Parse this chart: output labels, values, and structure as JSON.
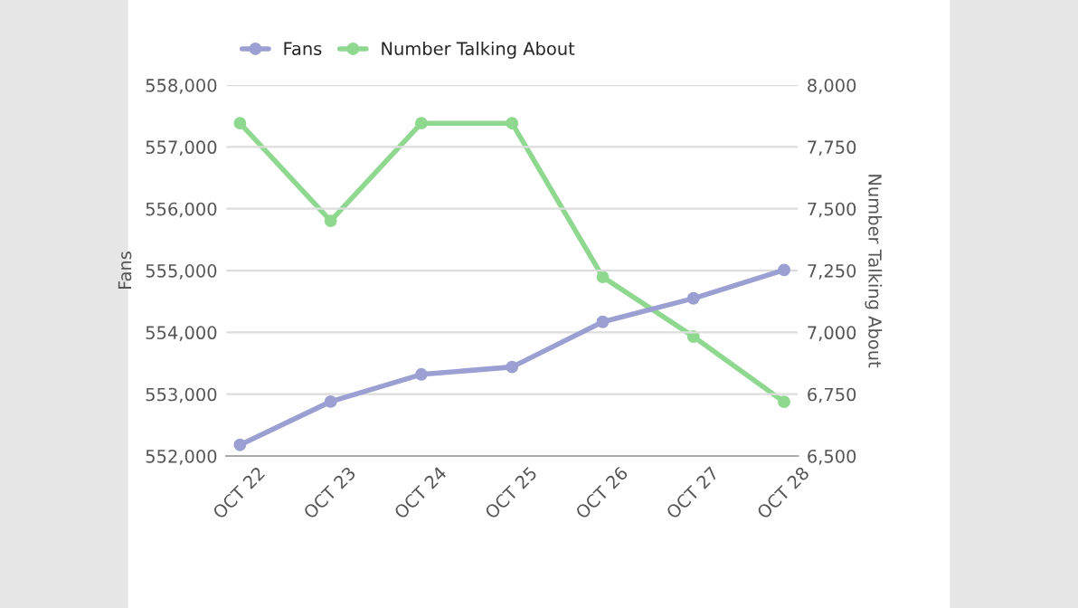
{
  "chart_data": {
    "type": "line",
    "xlabel": null,
    "ylabel": "Fans",
    "y2label": "Number Talking About",
    "categories": [
      "OCT 22",
      "OCT 23",
      "OCT 24",
      "OCT 25",
      "OCT 26",
      "OCT 27",
      "OCT 28"
    ],
    "series": [
      {
        "name": "Fans",
        "color": "#9b9fd2",
        "values": [
          552180,
          552880,
          553320,
          553440,
          554170,
          554550,
          555010
        ]
      },
      {
        "name": "Number Talking About",
        "color": "#8fd88f",
        "axis": "y2",
        "values": [
          7846,
          7451,
          7846,
          7846,
          7224,
          6983,
          6719
        ]
      }
    ],
    "ylim": [
      552000,
      558000
    ],
    "yticks": [
      {
        "value": 552000,
        "label": "552,000"
      },
      {
        "value": 553000,
        "label": "553,000"
      },
      {
        "value": 554000,
        "label": "554,000"
      },
      {
        "value": 555000,
        "label": "555,000"
      },
      {
        "value": 556000,
        "label": "556,000"
      },
      {
        "value": 557000,
        "label": "557,000"
      },
      {
        "value": 558000,
        "label": "558,000"
      }
    ],
    "y2lim": [
      6500,
      8000
    ],
    "y2ticks": [
      {
        "value": 6500,
        "label": "6,500"
      },
      {
        "value": 6750,
        "label": "6,750"
      },
      {
        "value": 7000,
        "label": "7,000"
      },
      {
        "value": 7250,
        "label": "7,250"
      },
      {
        "value": 7500,
        "label": "7,500"
      },
      {
        "value": 7750,
        "label": "7,750"
      },
      {
        "value": 8000,
        "label": "8,000"
      }
    ],
    "grid": "y",
    "legend": "top left",
    "marker": "circle",
    "line_style": "solid"
  }
}
